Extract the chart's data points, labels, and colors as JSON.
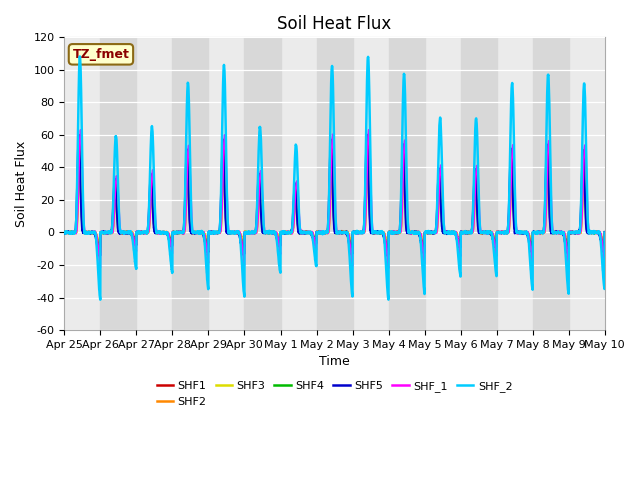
{
  "title": "Soil Heat Flux",
  "xlabel": "Time",
  "ylabel": "Soil Heat Flux",
  "ylim": [
    -60,
    120
  ],
  "ytick_labels": [
    -60,
    -40,
    -20,
    0,
    20,
    40,
    60,
    80,
    100,
    120
  ],
  "xtick_labels": [
    "Apr 25",
    "Apr 26",
    "Apr 27",
    "Apr 28",
    "Apr 29",
    "Apr 30",
    "May 1",
    "May 2",
    "May 3",
    "May 4",
    "May 5",
    "May 6",
    "May 7",
    "May 8",
    "May 9",
    "May 10"
  ],
  "legend_label": "TZ_fmet",
  "series_names": [
    "SHF1",
    "SHF2",
    "SHF3",
    "SHF4",
    "SHF5",
    "SHF_1",
    "SHF_2"
  ],
  "series_colors": [
    "#cc0000",
    "#ff8800",
    "#dddd00",
    "#00bb00",
    "#0000cc",
    "#ff00ff",
    "#00ccff"
  ],
  "n_days": 15,
  "title_fontsize": 12,
  "axis_label_fontsize": 9,
  "tick_fontsize": 8,
  "plot_bg_color": "#ebebeb",
  "band_color": "#d8d8d8",
  "shf2_peak_factor": 1.8,
  "day_amplitudes": [
    1.0,
    0.55,
    0.6,
    0.85,
    0.95,
    0.6,
    0.5,
    0.95,
    1.0,
    0.9,
    0.65,
    0.65,
    0.85,
    0.9,
    0.85
  ],
  "base_amps": [
    55,
    52,
    48,
    45,
    60,
    63,
    108
  ],
  "night_amps": [
    -13,
    -12,
    -10,
    -9,
    -14,
    -24,
    -42
  ]
}
